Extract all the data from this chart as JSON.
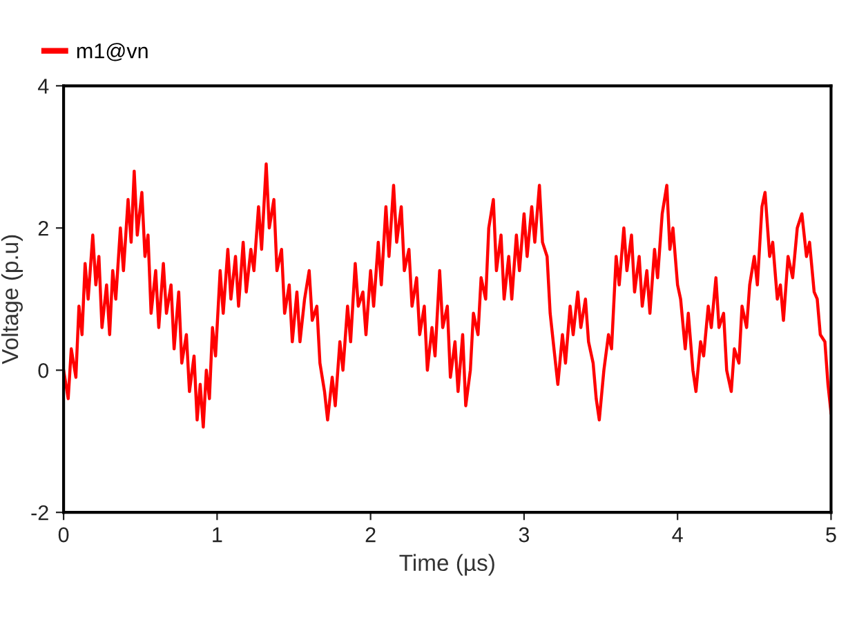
{
  "chart_data": {
    "type": "line",
    "xlabel": "Time (µs)",
    "ylabel": "Voltage (p.u)",
    "xlim": [
      0,
      5
    ],
    "ylim": [
      -2,
      4
    ],
    "xticks": [
      0,
      1,
      2,
      3,
      4,
      5
    ],
    "yticks": [
      -2,
      0,
      2,
      4
    ],
    "grid": false,
    "legend": "top left",
    "marker": "none",
    "line_style": "solid",
    "series": [
      {
        "name": "m1@vn",
        "color": "#ff0000",
        "x": [
          0.0,
          0.03,
          0.05,
          0.08,
          0.1,
          0.12,
          0.14,
          0.16,
          0.19,
          0.21,
          0.23,
          0.25,
          0.28,
          0.3,
          0.32,
          0.34,
          0.37,
          0.39,
          0.42,
          0.44,
          0.46,
          0.48,
          0.51,
          0.53,
          0.55,
          0.57,
          0.6,
          0.62,
          0.65,
          0.67,
          0.7,
          0.72,
          0.75,
          0.77,
          0.8,
          0.82,
          0.85,
          0.87,
          0.89,
          0.91,
          0.93,
          0.95,
          0.97,
          0.99,
          1.02,
          1.04,
          1.07,
          1.09,
          1.12,
          1.14,
          1.17,
          1.19,
          1.22,
          1.24,
          1.27,
          1.29,
          1.32,
          1.34,
          1.37,
          1.39,
          1.42,
          1.44,
          1.47,
          1.49,
          1.52,
          1.54,
          1.57,
          1.6,
          1.62,
          1.65,
          1.67,
          1.7,
          1.72,
          1.75,
          1.77,
          1.8,
          1.82,
          1.85,
          1.87,
          1.9,
          1.92,
          1.95,
          1.97,
          2.0,
          2.02,
          2.05,
          2.07,
          2.1,
          2.12,
          2.15,
          2.17,
          2.2,
          2.22,
          2.25,
          2.27,
          2.3,
          2.32,
          2.35,
          2.37,
          2.4,
          2.42,
          2.45,
          2.47,
          2.5,
          2.52,
          2.55,
          2.57,
          2.6,
          2.62,
          2.65,
          2.67,
          2.7,
          2.72,
          2.75,
          2.77,
          2.8,
          2.82,
          2.85,
          2.87,
          2.9,
          2.92,
          2.95,
          2.97,
          3.0,
          3.02,
          3.05,
          3.07,
          3.1,
          3.12,
          3.15,
          3.17,
          3.2,
          3.22,
          3.25,
          3.27,
          3.3,
          3.32,
          3.35,
          3.37,
          3.4,
          3.42,
          3.45,
          3.47,
          3.49,
          3.52,
          3.55,
          3.57,
          3.6,
          3.62,
          3.65,
          3.67,
          3.7,
          3.72,
          3.75,
          3.77,
          3.8,
          3.82,
          3.85,
          3.87,
          3.9,
          3.93,
          3.95,
          3.97,
          4.0,
          4.02,
          4.05,
          4.07,
          4.1,
          4.12,
          4.15,
          4.17,
          4.2,
          4.22,
          4.25,
          4.27,
          4.3,
          4.32,
          4.35,
          4.37,
          4.4,
          4.42,
          4.45,
          4.47,
          4.5,
          4.52,
          4.55,
          4.57,
          4.6,
          4.62,
          4.65,
          4.67,
          4.69,
          4.72,
          4.75,
          4.78,
          4.81,
          4.84,
          4.86,
          4.89,
          4.91,
          4.93,
          4.96,
          4.98,
          5.0
        ],
        "values": [
          0.0,
          -0.4,
          0.3,
          -0.1,
          0.9,
          0.5,
          1.5,
          1.0,
          1.9,
          1.2,
          1.6,
          0.6,
          1.2,
          0.5,
          1.4,
          1.0,
          2.0,
          1.4,
          2.4,
          1.8,
          2.8,
          1.9,
          2.5,
          1.6,
          1.9,
          0.8,
          1.4,
          0.6,
          1.5,
          0.8,
          1.2,
          0.3,
          1.1,
          0.1,
          0.5,
          -0.3,
          0.2,
          -0.7,
          -0.2,
          -0.8,
          0.0,
          -0.4,
          0.6,
          0.2,
          1.4,
          0.8,
          1.7,
          1.0,
          1.6,
          0.9,
          1.8,
          1.1,
          1.7,
          1.4,
          2.3,
          1.7,
          2.9,
          2.0,
          2.4,
          1.4,
          1.7,
          0.8,
          1.2,
          0.4,
          1.1,
          0.4,
          1.0,
          1.4,
          0.7,
          0.9,
          0.1,
          -0.3,
          -0.7,
          -0.1,
          -0.5,
          0.4,
          0.0,
          0.9,
          0.4,
          1.5,
          0.9,
          1.1,
          0.5,
          1.4,
          0.9,
          1.8,
          1.2,
          2.3,
          1.6,
          2.6,
          1.8,
          2.3,
          1.4,
          1.7,
          0.9,
          1.3,
          0.5,
          0.9,
          0.0,
          0.6,
          0.2,
          1.4,
          0.6,
          0.9,
          -0.1,
          0.4,
          -0.3,
          0.5,
          -0.5,
          0.0,
          0.8,
          0.5,
          1.3,
          1.0,
          2.0,
          2.4,
          1.4,
          1.9,
          1.0,
          1.6,
          1.0,
          1.9,
          1.4,
          2.2,
          1.6,
          2.3,
          1.8,
          2.6,
          1.8,
          1.6,
          0.8,
          0.2,
          -0.2,
          0.5,
          0.1,
          0.9,
          0.5,
          1.1,
          0.6,
          1.0,
          0.4,
          0.1,
          -0.4,
          -0.7,
          0.0,
          0.5,
          0.3,
          1.6,
          1.2,
          2.0,
          1.4,
          1.9,
          1.1,
          1.6,
          0.9,
          1.4,
          0.8,
          1.7,
          1.3,
          2.2,
          2.6,
          1.7,
          2.0,
          1.2,
          1.0,
          0.3,
          0.8,
          0.0,
          -0.3,
          0.4,
          0.2,
          0.9,
          0.6,
          1.3,
          0.6,
          0.8,
          0.0,
          -0.3,
          0.3,
          0.1,
          0.9,
          0.6,
          1.2,
          1.6,
          1.2,
          2.3,
          2.5,
          1.6,
          1.8,
          1.0,
          1.2,
          0.7,
          1.6,
          1.3,
          2.0,
          2.2,
          1.6,
          1.8,
          1.1,
          1.0,
          0.5,
          0.4,
          -0.2,
          -0.6
        ]
      }
    ]
  }
}
